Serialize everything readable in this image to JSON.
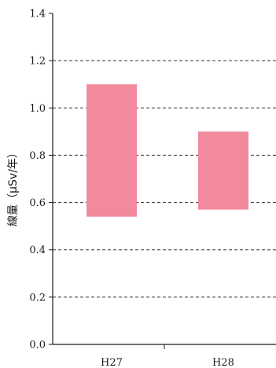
{
  "chart_data": {
    "type": "bar",
    "categories": [
      "H27",
      "H28"
    ],
    "series": [
      {
        "low": [
          0.54,
          0.57
        ],
        "high": [
          1.1,
          0.9
        ]
      }
    ],
    "ylabel": "線量（μSv/年）",
    "ylim": [
      0.0,
      1.4
    ],
    "yticks": [
      "0.0",
      "0.2",
      "0.4",
      "0.6",
      "0.8",
      "1.0",
      "1.2",
      "1.4"
    ],
    "grid": true,
    "bar_color": "#F28A9D",
    "grid_color": "#333333"
  }
}
